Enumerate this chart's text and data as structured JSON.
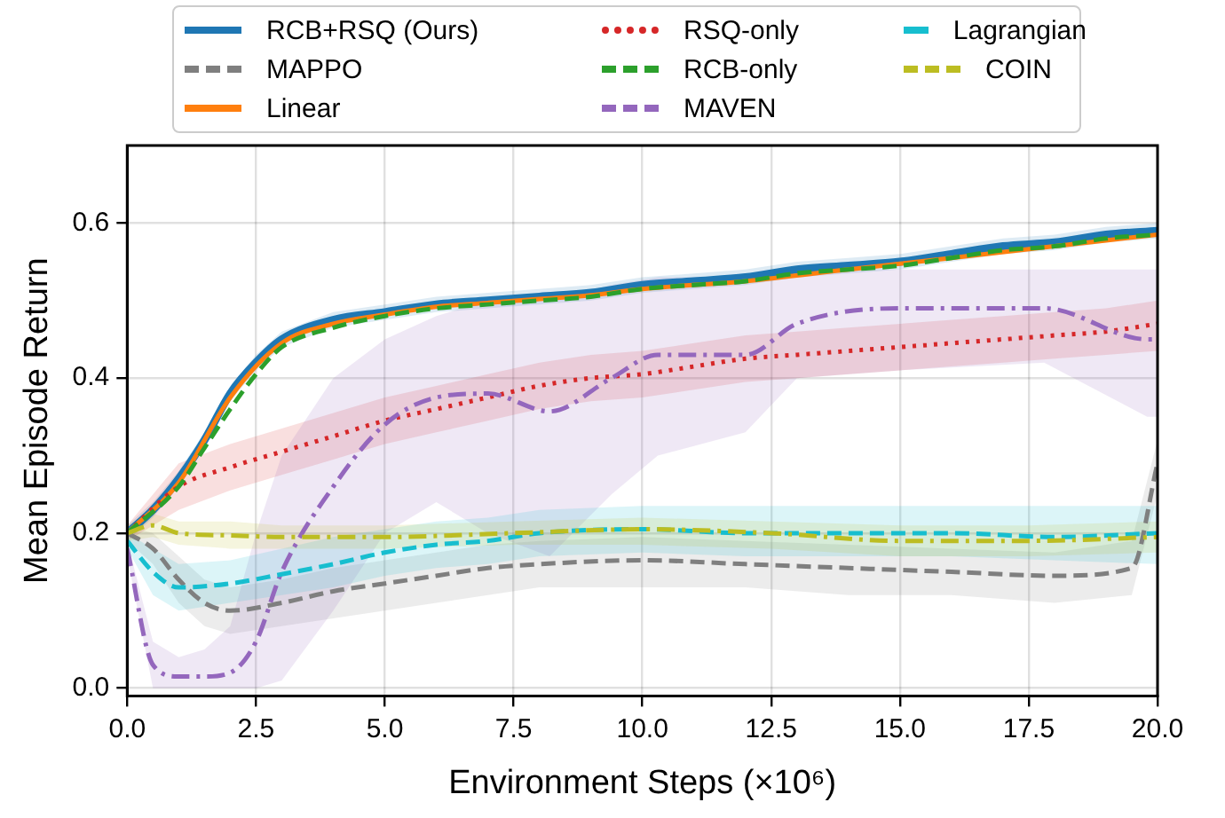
{
  "chart_data": {
    "type": "line",
    "xlabel": "Environment Steps (×10⁶)",
    "ylabel": "Mean Episode Return",
    "xlim": [
      0,
      20
    ],
    "ylim": [
      -0.01,
      0.7
    ],
    "xticks": [
      {
        "value": 0,
        "label": "0.0"
      },
      {
        "value": 2.5,
        "label": "2.5"
      },
      {
        "value": 5,
        "label": "5.0"
      },
      {
        "value": 7.5,
        "label": "7.5"
      },
      {
        "value": 10,
        "label": "10.0"
      },
      {
        "value": 12.5,
        "label": "12.5"
      },
      {
        "value": 15,
        "label": "15.0"
      },
      {
        "value": 17.5,
        "label": "17.5"
      },
      {
        "value": 20,
        "label": "20.0"
      }
    ],
    "yticks": [
      {
        "value": 0,
        "label": "0.0"
      },
      {
        "value": 0.2,
        "label": "0.2"
      },
      {
        "value": 0.4,
        "label": "0.4"
      },
      {
        "value": 0.6,
        "label": "0.6"
      }
    ],
    "grid": true,
    "legend": "top",
    "marker": "none",
    "series": [
      {
        "name": "RCB+RSQ (Ours)",
        "color": "#1f77b4",
        "line_style": "solid",
        "x": [
          0,
          0.5,
          1,
          1.5,
          2,
          2.5,
          3,
          4,
          5,
          6,
          7,
          8,
          9,
          10,
          11,
          12,
          13,
          14,
          15,
          16,
          17,
          18,
          19,
          20
        ],
        "values": [
          0.2,
          0.23,
          0.27,
          0.32,
          0.38,
          0.42,
          0.45,
          0.475,
          0.485,
          0.495,
          0.5,
          0.505,
          0.51,
          0.52,
          0.525,
          0.53,
          0.54,
          0.545,
          0.55,
          0.56,
          0.57,
          0.575,
          0.585,
          0.59
        ],
        "lower": [
          0.19,
          0.22,
          0.26,
          0.31,
          0.37,
          0.41,
          0.44,
          0.465,
          0.475,
          0.485,
          0.49,
          0.495,
          0.5,
          0.51,
          0.515,
          0.52,
          0.53,
          0.535,
          0.54,
          0.55,
          0.56,
          0.565,
          0.575,
          0.58
        ],
        "upper": [
          0.21,
          0.24,
          0.28,
          0.33,
          0.39,
          0.43,
          0.46,
          0.485,
          0.495,
          0.505,
          0.51,
          0.515,
          0.52,
          0.53,
          0.535,
          0.54,
          0.55,
          0.555,
          0.56,
          0.57,
          0.58,
          0.585,
          0.595,
          0.6
        ]
      },
      {
        "name": "MAPPO",
        "color": "#7f7f7f",
        "line_style": "dashed",
        "x": [
          0,
          0.5,
          1,
          1.5,
          2,
          3,
          4,
          5,
          6,
          7,
          8,
          10,
          12,
          14,
          16,
          18,
          19.5,
          20
        ],
        "values": [
          0.2,
          0.18,
          0.14,
          0.11,
          0.1,
          0.11,
          0.125,
          0.135,
          0.145,
          0.155,
          0.16,
          0.165,
          0.16,
          0.155,
          0.15,
          0.145,
          0.155,
          0.29
        ],
        "lower": [
          0.19,
          0.16,
          0.11,
          0.08,
          0.07,
          0.08,
          0.09,
          0.1,
          0.11,
          0.12,
          0.13,
          0.13,
          0.13,
          0.12,
          0.12,
          0.11,
          0.12,
          0.25
        ],
        "upper": [
          0.21,
          0.2,
          0.17,
          0.14,
          0.13,
          0.14,
          0.155,
          0.165,
          0.175,
          0.185,
          0.19,
          0.195,
          0.19,
          0.185,
          0.18,
          0.175,
          0.19,
          0.32
        ]
      },
      {
        "name": "Linear",
        "color": "#ff7f0e",
        "line_style": "solid",
        "x": [
          0,
          1,
          2,
          3,
          4,
          5,
          6,
          7,
          8,
          9,
          10,
          12,
          14,
          16,
          18,
          20
        ],
        "values": [
          0.2,
          0.265,
          0.375,
          0.445,
          0.47,
          0.482,
          0.492,
          0.497,
          0.502,
          0.507,
          0.515,
          0.525,
          0.54,
          0.555,
          0.57,
          0.585
        ]
      },
      {
        "name": "RSQ-only",
        "color": "#d62728",
        "line_style": "dotted",
        "x": [
          0,
          1,
          2,
          3,
          4,
          5,
          6,
          7,
          8,
          9,
          10,
          11,
          12,
          13,
          14,
          15,
          16,
          17,
          18,
          19,
          20
        ],
        "values": [
          0.2,
          0.26,
          0.285,
          0.305,
          0.325,
          0.345,
          0.36,
          0.375,
          0.39,
          0.4,
          0.405,
          0.415,
          0.425,
          0.43,
          0.435,
          0.44,
          0.445,
          0.45,
          0.455,
          0.46,
          0.47
        ],
        "lower": [
          0.19,
          0.23,
          0.255,
          0.275,
          0.295,
          0.315,
          0.33,
          0.345,
          0.36,
          0.37,
          0.375,
          0.385,
          0.395,
          0.4,
          0.405,
          0.41,
          0.415,
          0.42,
          0.425,
          0.43,
          0.435
        ],
        "upper": [
          0.21,
          0.29,
          0.315,
          0.335,
          0.355,
          0.375,
          0.39,
          0.405,
          0.42,
          0.43,
          0.435,
          0.445,
          0.455,
          0.46,
          0.465,
          0.47,
          0.475,
          0.48,
          0.485,
          0.49,
          0.5
        ]
      },
      {
        "name": "RCB-only",
        "color": "#2ca02c",
        "line_style": "dashed",
        "x": [
          0,
          1,
          1.5,
          2,
          2.5,
          3,
          4,
          5,
          6,
          7,
          8,
          9,
          10,
          11,
          12,
          13,
          14,
          15,
          16,
          17,
          18,
          19,
          20
        ],
        "values": [
          0.2,
          0.26,
          0.31,
          0.36,
          0.405,
          0.44,
          0.465,
          0.48,
          0.49,
          0.495,
          0.5,
          0.505,
          0.515,
          0.52,
          0.525,
          0.535,
          0.54,
          0.545,
          0.555,
          0.565,
          0.57,
          0.58,
          0.585
        ]
      },
      {
        "name": "MAVEN",
        "color": "#9467bd",
        "line_style": "dashdot",
        "x": [
          0,
          0.5,
          1,
          1.5,
          2,
          2.5,
          3,
          4,
          5,
          6,
          7,
          8.2,
          9.4,
          10.3,
          12,
          13,
          15,
          17.8,
          19.8,
          20
        ],
        "values": [
          0.18,
          0.03,
          0.015,
          0.015,
          0.02,
          0.06,
          0.15,
          0.26,
          0.34,
          0.375,
          0.38,
          0.357,
          0.4,
          0.43,
          0.43,
          0.47,
          0.49,
          0.49,
          0.45,
          0.45
        ],
        "lower": [
          0.17,
          0.0,
          0.0,
          0.0,
          0.0,
          0.0,
          0.01,
          0.1,
          0.2,
          0.24,
          0.2,
          0.17,
          0.25,
          0.3,
          0.33,
          0.4,
          0.41,
          0.42,
          0.35,
          0.35
        ],
        "upper": [
          0.19,
          0.06,
          0.04,
          0.05,
          0.08,
          0.2,
          0.3,
          0.4,
          0.45,
          0.48,
          0.5,
          0.5,
          0.52,
          0.53,
          0.53,
          0.54,
          0.54,
          0.54,
          0.54,
          0.54
        ]
      },
      {
        "name": "Lagrangian",
        "color": "#17becf",
        "line_style": "dashed",
        "x": [
          0,
          0.5,
          1,
          2,
          3,
          4,
          5,
          6,
          7,
          8,
          10,
          12,
          14,
          16,
          18,
          20
        ],
        "values": [
          0.19,
          0.15,
          0.13,
          0.135,
          0.147,
          0.16,
          0.175,
          0.185,
          0.19,
          0.2,
          0.205,
          0.2,
          0.2,
          0.2,
          0.195,
          0.2
        ],
        "lower": [
          0.18,
          0.12,
          0.1,
          0.11,
          0.12,
          0.13,
          0.145,
          0.155,
          0.16,
          0.17,
          0.175,
          0.17,
          0.17,
          0.17,
          0.165,
          0.16
        ],
        "upper": [
          0.2,
          0.18,
          0.16,
          0.165,
          0.18,
          0.195,
          0.205,
          0.215,
          0.22,
          0.23,
          0.235,
          0.235,
          0.235,
          0.235,
          0.235,
          0.235
        ]
      },
      {
        "name": "COIN",
        "color": "#bcbd22",
        "line_style": "dashdot",
        "x": [
          0,
          0.5,
          1,
          2,
          3,
          5,
          7.5,
          10,
          12.5,
          15,
          17.5,
          20
        ],
        "values": [
          0.2,
          0.21,
          0.2,
          0.197,
          0.195,
          0.195,
          0.2,
          0.205,
          0.2,
          0.19,
          0.19,
          0.195
        ],
        "lower": [
          0.19,
          0.195,
          0.185,
          0.18,
          0.18,
          0.18,
          0.185,
          0.185,
          0.18,
          0.17,
          0.17,
          0.175
        ],
        "upper": [
          0.21,
          0.225,
          0.215,
          0.215,
          0.21,
          0.21,
          0.215,
          0.22,
          0.215,
          0.21,
          0.21,
          0.215
        ]
      }
    ]
  }
}
